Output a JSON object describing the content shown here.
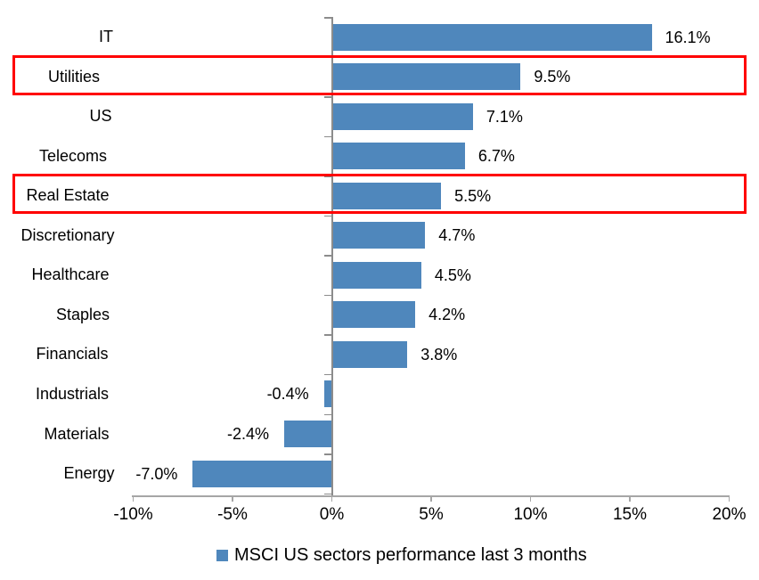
{
  "chart_data": {
    "type": "bar",
    "orientation": "horizontal",
    "title": "",
    "legend": "MSCI US sectors performance last 3 months",
    "legend_position": "bottom",
    "categories": [
      "IT",
      "Utilities",
      "US",
      "Telecoms",
      "Real Estate",
      "Discretionary",
      "Healthcare",
      "Staples",
      "Financials",
      "Industrials",
      "Materials",
      "Energy"
    ],
    "values": [
      16.1,
      9.5,
      7.1,
      6.7,
      5.5,
      4.7,
      4.5,
      4.2,
      3.8,
      -0.4,
      -2.4,
      -7.0
    ],
    "data_labels": [
      "16.1%",
      "9.5%",
      "7.1%",
      "6.7%",
      "5.5%",
      "4.7%",
      "4.5%",
      "4.2%",
      "3.8%",
      "-0.4%",
      "-2.4%",
      "-7.0%"
    ],
    "highlighted_categories": [
      "Utilities",
      "Real Estate"
    ],
    "x_ticks": [
      {
        "value": -10,
        "label": "-10%"
      },
      {
        "value": -5,
        "label": "-5%"
      },
      {
        "value": 0,
        "label": "0%"
      },
      {
        "value": 5,
        "label": "5%"
      },
      {
        "value": 10,
        "label": "10%"
      },
      {
        "value": 15,
        "label": "15%"
      },
      {
        "value": 20,
        "label": "20%"
      }
    ],
    "xlim": [
      -10,
      20
    ],
    "grid": false,
    "colors": {
      "bar": "#4F87BC",
      "highlight_box": "#FF0000",
      "value_axis_line": "#A6A6A6",
      "category_axis_line": "#8C8C8C",
      "text": "#000000"
    }
  }
}
